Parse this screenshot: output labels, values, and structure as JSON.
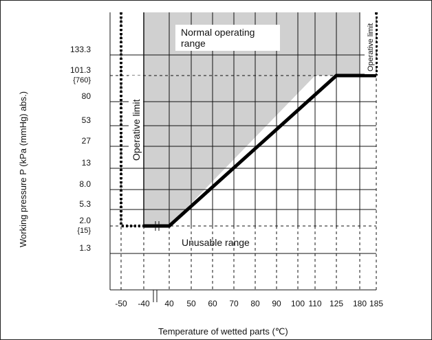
{
  "chart_data": {
    "type": "line",
    "title": "",
    "xlabel": "Temperature of wetted parts (℃)",
    "ylabel": "Working pressure P (kPa (mmHg) abs.)",
    "x_tick_labels": [
      "-50",
      "-40",
      "40",
      "50",
      "60",
      "70",
      "80",
      "90",
      "100",
      "110",
      "125",
      "180",
      "185"
    ],
    "y_tick_labels": [
      {
        "label": "133.3",
        "sub": ""
      },
      {
        "label": "101.3",
        "sub": "{760}"
      },
      {
        "label": "80",
        "sub": ""
      },
      {
        "label": "53",
        "sub": ""
      },
      {
        "label": "27",
        "sub": ""
      },
      {
        "label": "13",
        "sub": ""
      },
      {
        "label": "8.0",
        "sub": ""
      },
      {
        "label": "5.3",
        "sub": ""
      },
      {
        "label": "2.0",
        "sub": "{15}"
      },
      {
        "label": "1.3",
        "sub": ""
      }
    ],
    "regions": {
      "normal": "Normal operating\nrange",
      "unusable": "Unusable range"
    },
    "annotations": {
      "operative_limit_left": "Operative limit",
      "operative_limit_right": "Operative limit"
    },
    "series": [
      {
        "style": "solid-thick",
        "points": [
          [
            "-40",
            "2.0"
          ],
          [
            "40",
            "2.0"
          ],
          [
            "125",
            "101.3"
          ],
          [
            "185",
            "101.3"
          ]
        ]
      },
      {
        "style": "dotted-left",
        "points": [
          [
            "-50",
            "top"
          ],
          [
            "-50",
            "2.0"
          ],
          [
            "-40",
            "2.0"
          ]
        ]
      },
      {
        "style": "dotted-right",
        "points": [
          [
            "185",
            "top"
          ],
          [
            "185",
            "101.3"
          ]
        ]
      }
    ],
    "fill_color": "#d0d0d0",
    "grid": true,
    "x_axis_break_after": "-40"
  }
}
